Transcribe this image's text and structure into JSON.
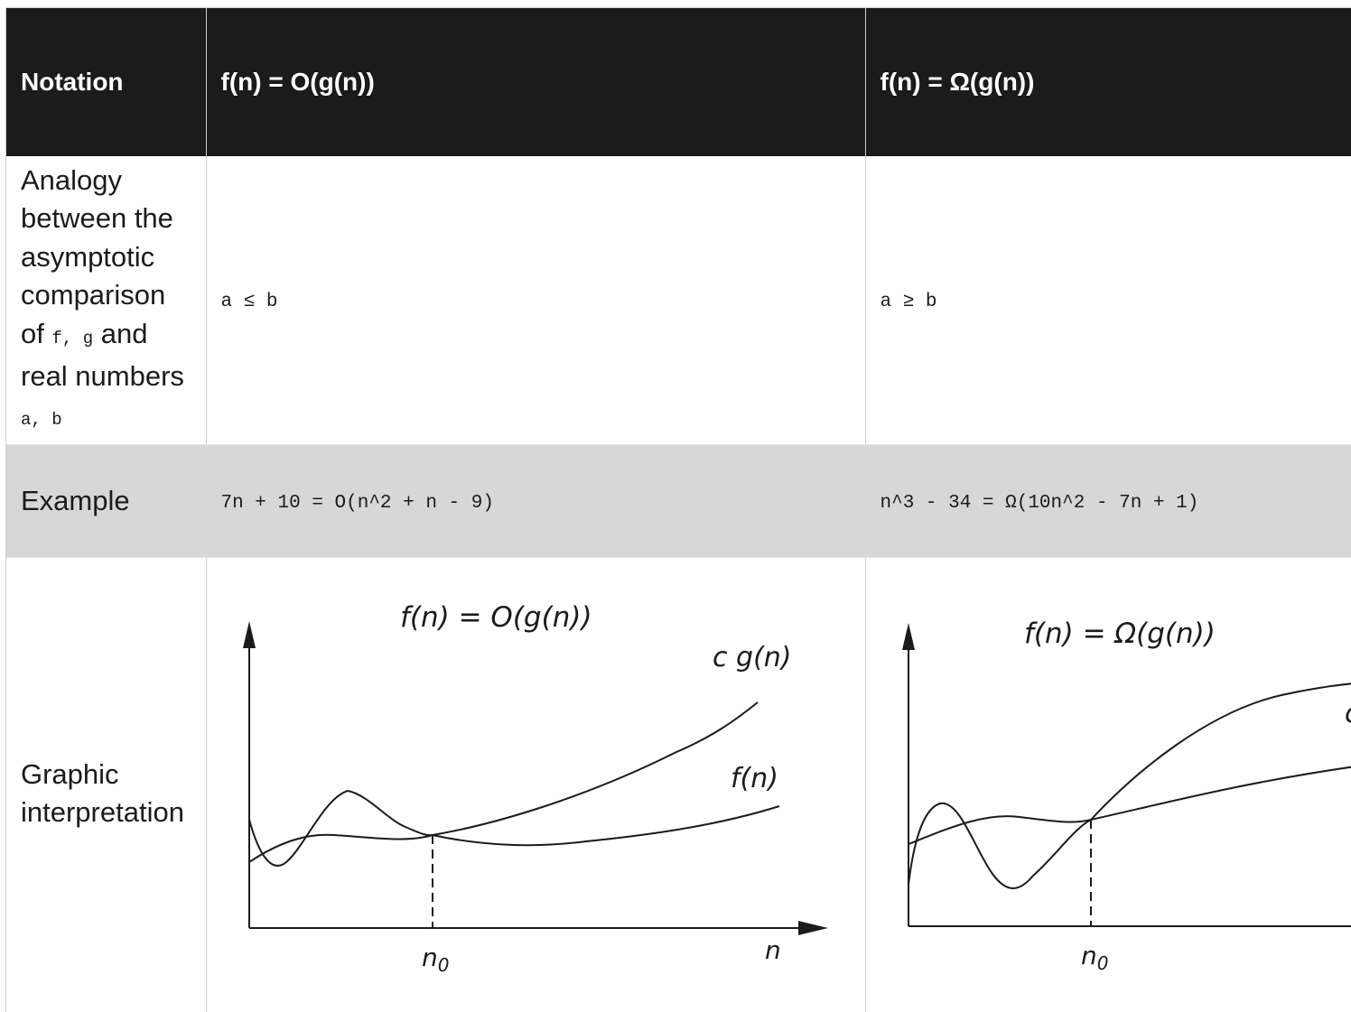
{
  "header": {
    "notation": "Notation",
    "big_o": "f(n) = O(g(n))",
    "big_omega": "f(n) = Ω(g(n))"
  },
  "analogy_row": {
    "label_pre": "Analogy between the asymptotic comparison of",
    "label_fg": "f, g",
    "label_mid": "and real numbers",
    "label_ab": "a, b",
    "big_o_value": "a ≤ b",
    "big_omega_value": "a ≥ b"
  },
  "example_row": {
    "label": "Example",
    "big_o_value": "7n + 10 = O(n^2 + n - 9)",
    "big_omega_value": "n^3 - 34 = Ω(10n^2 - 7n + 1)"
  },
  "graphic_row": {
    "label": "Graphic interpretation",
    "big_o_graph": {
      "title": "f(n) = O(g(n))",
      "upper_curve_label": "c g(n)",
      "lower_curve_label": "f(n)",
      "threshold_label": "n0",
      "axis_label": "n"
    },
    "big_omega_graph": {
      "title": "f(n) = Ω(g(n))",
      "partial_label": "c",
      "threshold_label": "n0"
    }
  },
  "colors": {
    "header_bg": "#1b1b1b",
    "header_text": "#ffffff",
    "example_bg": "#d7d7d7",
    "border": "#cfcfcf"
  }
}
